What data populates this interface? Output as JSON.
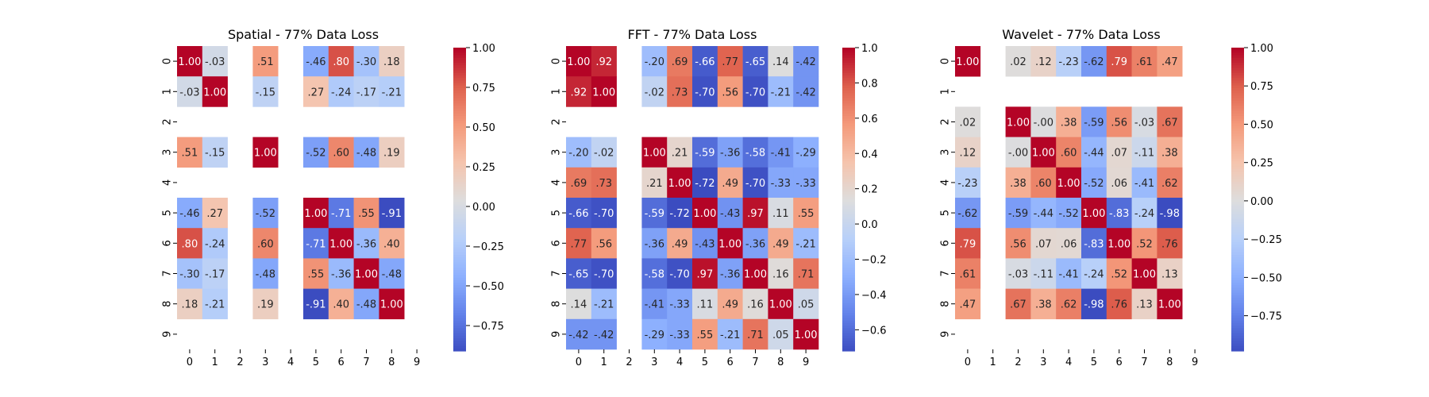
{
  "chart_data": [
    {
      "type": "heatmap",
      "title": "Spatial - 77% Data Loss",
      "x_tick_labels": [
        "0",
        "1",
        "2",
        "3",
        "4",
        "5",
        "6",
        "7",
        "8",
        "9"
      ],
      "y_tick_labels": [
        "0",
        "1",
        "2",
        "3",
        "4",
        "5",
        "6",
        "7",
        "8",
        "9"
      ],
      "colormap": "coolwarm",
      "vmin": -0.91,
      "vmax": 1.0,
      "colorbar_ticks": [
        1.0,
        0.75,
        0.5,
        0.25,
        0.0,
        -0.25,
        -0.5,
        -0.75
      ],
      "colorbar_tick_labels": [
        "1.00",
        "0.75",
        "0.50",
        "0.25",
        "0.00",
        "−0.25",
        "−0.50",
        "−0.75"
      ],
      "matrix": [
        [
          1.0,
          -0.03,
          null,
          0.51,
          null,
          -0.46,
          0.8,
          -0.3,
          0.18,
          null
        ],
        [
          -0.03,
          1.0,
          null,
          -0.15,
          null,
          0.27,
          -0.24,
          -0.17,
          -0.21,
          null
        ],
        [
          null,
          null,
          null,
          null,
          null,
          null,
          null,
          null,
          null,
          null
        ],
        [
          0.51,
          -0.15,
          null,
          1.0,
          null,
          -0.52,
          0.6,
          -0.48,
          0.19,
          null
        ],
        [
          null,
          null,
          null,
          null,
          null,
          null,
          null,
          null,
          null,
          null
        ],
        [
          -0.46,
          0.27,
          null,
          -0.52,
          null,
          1.0,
          -0.71,
          0.55,
          -0.91,
          null
        ],
        [
          0.8,
          -0.24,
          null,
          0.6,
          null,
          -0.71,
          1.0,
          -0.36,
          0.4,
          null
        ],
        [
          -0.3,
          -0.17,
          null,
          -0.48,
          null,
          0.55,
          -0.36,
          1.0,
          -0.48,
          null
        ],
        [
          0.18,
          -0.21,
          null,
          0.19,
          null,
          -0.91,
          0.4,
          -0.48,
          1.0,
          null
        ],
        [
          null,
          null,
          null,
          null,
          null,
          null,
          null,
          null,
          null,
          null
        ]
      ]
    },
    {
      "type": "heatmap",
      "title": "FFT - 77% Data Loss",
      "x_tick_labels": [
        "0",
        "1",
        "2",
        "3",
        "4",
        "5",
        "6",
        "7",
        "8",
        "9"
      ],
      "y_tick_labels": [
        "0",
        "1",
        "2",
        "3",
        "4",
        "5",
        "6",
        "7",
        "8",
        "9"
      ],
      "colormap": "coolwarm",
      "vmin": -0.72,
      "vmax": 1.0,
      "colorbar_ticks": [
        1.0,
        0.8,
        0.6,
        0.4,
        0.2,
        0.0,
        -0.2,
        -0.4,
        -0.6
      ],
      "colorbar_tick_labels": [
        "1.0",
        "0.8",
        "0.6",
        "0.4",
        "0.2",
        "0.0",
        "−0.2",
        "−0.4",
        "−0.6"
      ],
      "matrix": [
        [
          1.0,
          0.92,
          null,
          -0.2,
          0.69,
          -0.66,
          0.77,
          -0.65,
          0.14,
          -0.42
        ],
        [
          0.92,
          1.0,
          null,
          -0.02,
          0.73,
          -0.7,
          0.56,
          -0.7,
          -0.21,
          -0.42
        ],
        [
          null,
          null,
          null,
          null,
          null,
          null,
          null,
          null,
          null,
          null
        ],
        [
          -0.2,
          -0.02,
          null,
          1.0,
          0.21,
          -0.59,
          -0.36,
          -0.58,
          -0.41,
          -0.29
        ],
        [
          0.69,
          0.73,
          null,
          0.21,
          1.0,
          -0.72,
          0.49,
          -0.7,
          -0.33,
          -0.33
        ],
        [
          -0.66,
          -0.7,
          null,
          -0.59,
          -0.72,
          1.0,
          -0.43,
          0.97,
          0.11,
          0.55
        ],
        [
          0.77,
          0.56,
          null,
          -0.36,
          0.49,
          -0.43,
          1.0,
          -0.36,
          0.49,
          -0.21
        ],
        [
          -0.65,
          -0.7,
          null,
          -0.58,
          -0.7,
          0.97,
          -0.36,
          1.0,
          0.16,
          0.71
        ],
        [
          0.14,
          -0.21,
          null,
          -0.41,
          -0.33,
          0.11,
          0.49,
          0.16,
          1.0,
          0.05
        ],
        [
          -0.42,
          -0.42,
          null,
          -0.29,
          -0.33,
          0.55,
          -0.21,
          0.71,
          0.05,
          1.0
        ]
      ]
    },
    {
      "type": "heatmap",
      "title": "Wavelet - 77% Data Loss",
      "x_tick_labels": [
        "0",
        "1",
        "2",
        "3",
        "4",
        "5",
        "6",
        "7",
        "8",
        "9"
      ],
      "y_tick_labels": [
        "0",
        "1",
        "2",
        "3",
        "4",
        "5",
        "6",
        "7",
        "8",
        "9"
      ],
      "colormap": "coolwarm",
      "vmin": -0.98,
      "vmax": 1.0,
      "colorbar_ticks": [
        1.0,
        0.75,
        0.5,
        0.25,
        0.0,
        -0.25,
        -0.5,
        -0.75
      ],
      "colorbar_tick_labels": [
        "1.00",
        "0.75",
        "0.50",
        "0.25",
        "0.00",
        "−0.25",
        "−0.50",
        "−0.75"
      ],
      "matrix": [
        [
          1.0,
          null,
          0.02,
          0.12,
          -0.23,
          -0.62,
          0.79,
          0.61,
          0.47,
          null
        ],
        [
          null,
          null,
          null,
          null,
          null,
          null,
          null,
          null,
          null,
          null
        ],
        [
          0.02,
          null,
          1.0,
          -0.0,
          0.38,
          -0.59,
          0.56,
          -0.03,
          0.67,
          null
        ],
        [
          0.12,
          null,
          -0.0,
          1.0,
          0.6,
          -0.44,
          0.07,
          -0.11,
          0.38,
          null
        ],
        [
          -0.23,
          null,
          0.38,
          0.6,
          1.0,
          -0.52,
          0.06,
          -0.41,
          0.62,
          null
        ],
        [
          -0.62,
          null,
          -0.59,
          -0.44,
          -0.52,
          1.0,
          -0.83,
          -0.24,
          -0.98,
          null
        ],
        [
          0.79,
          null,
          0.56,
          0.07,
          0.06,
          -0.83,
          1.0,
          0.52,
          0.76,
          null
        ],
        [
          0.61,
          null,
          -0.03,
          -0.11,
          -0.41,
          -0.24,
          0.52,
          1.0,
          0.13,
          null
        ],
        [
          0.47,
          null,
          0.67,
          0.38,
          0.62,
          -0.98,
          0.76,
          0.13,
          1.0,
          null
        ],
        [
          null,
          null,
          null,
          null,
          null,
          null,
          null,
          null,
          null,
          null
        ]
      ]
    }
  ]
}
